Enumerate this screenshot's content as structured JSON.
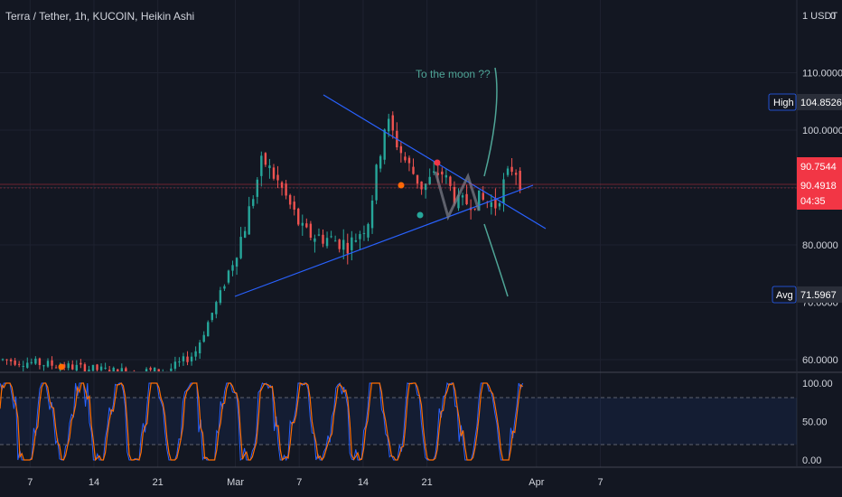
{
  "header": {
    "title": "Terra / Tether, 1h, KUCOIN, Heikin Ashi",
    "currency": "1 USDT",
    "corner": "0"
  },
  "colors": {
    "background": "#131722",
    "grid": "#1e2230",
    "candle_up": "#26a69a",
    "candle_down": "#ef5350",
    "trendline": "#2962ff",
    "annotation": "#4fa597",
    "stoch_k": "#2962ff",
    "stoch_d": "#ff6d00",
    "price_badge": "#f23645",
    "label_badge": "#131722"
  },
  "annotation": {
    "text": "To the moon ??"
  },
  "badges": {
    "high_label": "High",
    "high_value": "104.8526",
    "avg_label": "Avg",
    "avg_value": "71.5967",
    "price_1": "90.7544",
    "price_2": "90.4918",
    "countdown": "04:35"
  },
  "chart_data": [
    {
      "type": "candlestick",
      "title": "Terra / Tether, 1h, KUCOIN, Heikin Ashi",
      "y_ticks": [
        "110.0000",
        "100.0000",
        "80.0000",
        "70.0000",
        "60.0000"
      ],
      "ylim": [
        57,
        120
      ],
      "x_ticks": [
        "7",
        "14",
        "21",
        "Mar",
        "7",
        "14",
        "21",
        "Apr",
        "7"
      ],
      "series_path": [
        {
          "d": 0,
          "v": 60
        },
        {
          "d": 6,
          "v": 59
        },
        {
          "d": 12,
          "v": 58
        },
        {
          "d": 18,
          "v": 58
        },
        {
          "d": 21,
          "v": 61
        },
        {
          "d": 24,
          "v": 72
        },
        {
          "d": 26.5,
          "v": 83
        },
        {
          "d": 28.5,
          "v": 95
        },
        {
          "d": 30.5,
          "v": 90
        },
        {
          "d": 33,
          "v": 82
        },
        {
          "d": 36,
          "v": 81
        },
        {
          "d": 38,
          "v": 80
        },
        {
          "d": 40,
          "v": 84
        },
        {
          "d": 42,
          "v": 102
        },
        {
          "d": 44,
          "v": 95
        },
        {
          "d": 46,
          "v": 90
        },
        {
          "d": 48,
          "v": 93
        },
        {
          "d": 50,
          "v": 87
        },
        {
          "d": 52,
          "v": 88
        },
        {
          "d": 54,
          "v": 87
        },
        {
          "d": 55,
          "v": 91
        },
        {
          "d": 56,
          "v": 94
        },
        {
          "d": 57,
          "v": 90
        }
      ],
      "high": 104.8526,
      "average": 71.5967,
      "last_price": 90.7544
    },
    {
      "type": "line",
      "y_ticks": [
        "100.00",
        "50.00",
        "0.00"
      ],
      "ylim": [
        0,
        100
      ],
      "upper_band": 80,
      "lower_band": 20,
      "series": [
        {
          "color": "#ff6d00"
        },
        {
          "color": "#2962ff"
        }
      ]
    }
  ]
}
